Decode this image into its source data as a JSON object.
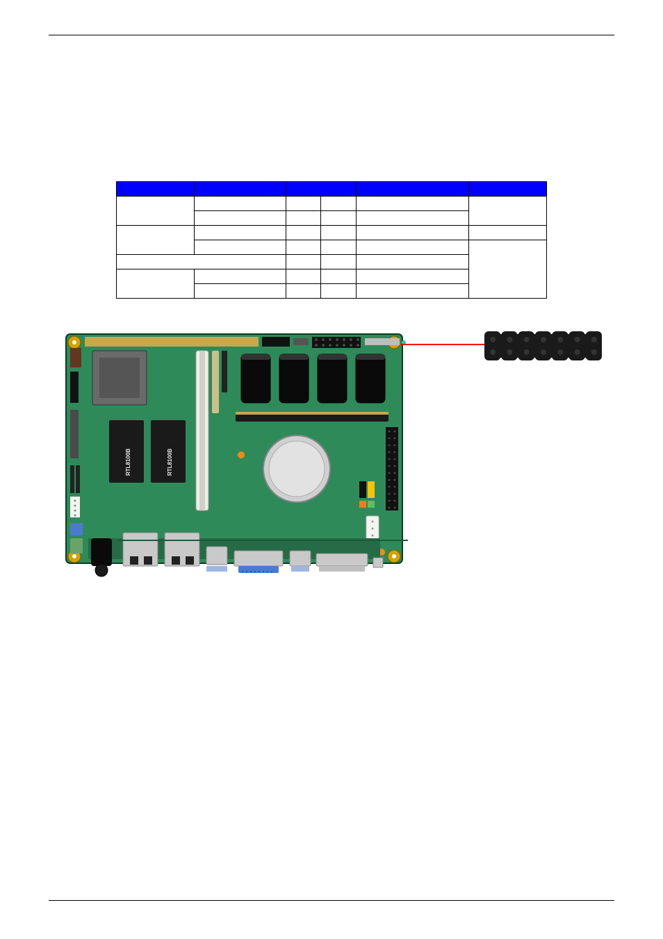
{
  "table": {
    "header_bg": "#0000ff",
    "header_fg": "#ffffff",
    "columns": [
      "",
      "",
      "",
      "",
      "",
      ""
    ],
    "rows": [
      [
        "r2",
        "",
        "",
        "",
        "",
        ""
      ],
      [
        "",
        "",
        "",
        "",
        "",
        ""
      ],
      [
        "r2",
        "",
        "",
        "",
        "",
        "r2"
      ],
      [
        "",
        "",
        "",
        "",
        "",
        ""
      ],
      [
        "c2",
        "",
        "",
        "",
        "",
        "r3"
      ],
      [
        "r2",
        "",
        "",
        "",
        "",
        ""
      ],
      [
        "",
        "",
        "",
        "",
        "",
        ""
      ]
    ]
  },
  "board": {
    "pcb_color": "#2f8a5a",
    "pcb_dark": "#256b46",
    "screw_color": "#d6a200",
    "track_gold": "#c7a84a",
    "chip_gray": "#6a6a6a",
    "chip_black": "#1a1a1a",
    "chip_label": "RTL8100B",
    "port_silver": "#c9c9c9",
    "port_blue": "#4a7bd1",
    "slot_white": "#efefe5",
    "slot_black": "#1a1a1a",
    "battery_silver": "#d0d0d0",
    "header_black": "#111111",
    "header_yellow": "#f7c400",
    "callout_color": "#ff0000"
  },
  "connector": {
    "body_color": "#1a1a1a",
    "hole_color": "#333333",
    "pin_rows": 2,
    "pin_cols": 7
  }
}
